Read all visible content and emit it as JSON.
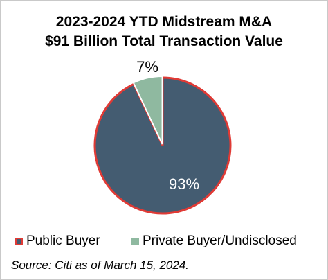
{
  "chart_data": {
    "type": "pie",
    "title_line_1": "2023-2024 YTD Midstream M&A",
    "title_line_2": "$91 Billion Total Transaction Value",
    "slices": [
      {
        "name": "Public Buyer",
        "value": 93,
        "label": "93%",
        "color": "#445c71",
        "border_color": "#e03a35"
      },
      {
        "name": "Private Buyer/Undisclosed",
        "value": 7,
        "label": "7%",
        "color": "#8fb9a0",
        "border_color": "#ffffff"
      }
    ],
    "legend_placement": "bottom",
    "source": "Source: Citi as of March 15, 2024."
  }
}
